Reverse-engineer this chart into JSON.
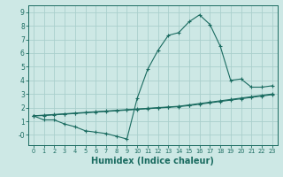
{
  "title": "",
  "xlabel": "Humidex (Indice chaleur)",
  "background_color": "#cde8e5",
  "grid_color": "#aacfcc",
  "line_color": "#1a6b60",
  "xlim": [
    -0.5,
    23.5
  ],
  "ylim": [
    -0.75,
    9.5
  ],
  "xticks": [
    0,
    1,
    2,
    3,
    4,
    5,
    6,
    7,
    8,
    9,
    10,
    11,
    12,
    13,
    14,
    15,
    16,
    17,
    18,
    19,
    20,
    21,
    22,
    23
  ],
  "yticks": [
    0,
    1,
    2,
    3,
    4,
    5,
    6,
    7,
    8,
    9
  ],
  "ytick_labels": [
    "-0",
    "1",
    "2",
    "3",
    "4",
    "5",
    "6",
    "7",
    "8",
    "9"
  ],
  "curve1_x": [
    0,
    1,
    2,
    3,
    4,
    5,
    6,
    7,
    8,
    9,
    10,
    11,
    12,
    13,
    14,
    15,
    16,
    17,
    18,
    19,
    20,
    21,
    22,
    23
  ],
  "curve1_y": [
    1.4,
    1.1,
    1.1,
    0.8,
    0.6,
    0.3,
    0.2,
    0.1,
    -0.1,
    -0.3,
    2.7,
    4.8,
    6.2,
    7.3,
    7.5,
    8.3,
    8.8,
    8.1,
    6.5,
    4.0,
    4.1,
    3.5,
    3.5,
    3.6
  ],
  "curve2_x": [
    0,
    1,
    2,
    3,
    4,
    5,
    6,
    7,
    8,
    9,
    10,
    11,
    12,
    13,
    14,
    15,
    16,
    17,
    18,
    19,
    20,
    21,
    22,
    23
  ],
  "curve2_y": [
    1.4,
    1.45,
    1.5,
    1.55,
    1.6,
    1.65,
    1.7,
    1.75,
    1.8,
    1.85,
    1.9,
    1.95,
    2.0,
    2.05,
    2.1,
    2.2,
    2.3,
    2.4,
    2.5,
    2.6,
    2.7,
    2.8,
    2.9,
    3.0
  ],
  "curve3_x": [
    0,
    1,
    2,
    3,
    4,
    5,
    6,
    7,
    8,
    9,
    10,
    11,
    12,
    13,
    14,
    15,
    16,
    17,
    18,
    19,
    20,
    21,
    22,
    23
  ],
  "curve3_y": [
    1.4,
    1.42,
    1.47,
    1.52,
    1.57,
    1.62,
    1.67,
    1.72,
    1.77,
    1.82,
    1.87,
    1.92,
    1.97,
    2.02,
    2.07,
    2.15,
    2.25,
    2.35,
    2.45,
    2.55,
    2.65,
    2.75,
    2.85,
    2.95
  ],
  "xlabel_fontsize": 7,
  "xtick_fontsize": 4.8,
  "ytick_fontsize": 5.5,
  "linewidth": 0.8,
  "markersize": 3.0
}
